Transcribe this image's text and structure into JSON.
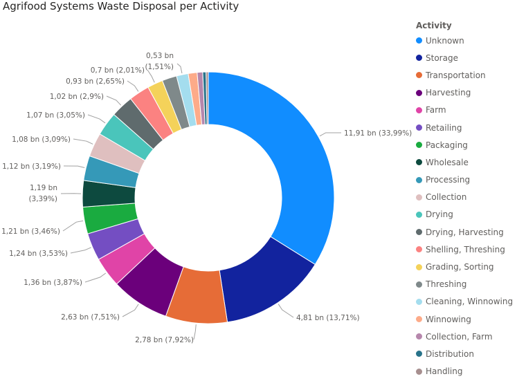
{
  "title": "Agrifood Systems Waste Disposal per Activity",
  "legend": {
    "title": "Activity"
  },
  "chart_data": {
    "type": "pie",
    "donut": true,
    "title": "Agrifood Systems Waste Disposal per Activity",
    "legend_title": "Activity",
    "legend_position": "right",
    "slices": [
      {
        "name": "Unknown",
        "value": 11.91,
        "label": "11,91 bn (33,99%)",
        "color": "#118DFF"
      },
      {
        "name": "Storage",
        "value": 4.81,
        "label": "4,81 bn (13,71%)",
        "color": "#12239E"
      },
      {
        "name": "Transportation",
        "value": 2.78,
        "label": "2,78 bn (7,92%)",
        "color": "#E66C37"
      },
      {
        "name": "Harvesting",
        "value": 2.63,
        "label": "2,63 bn (7,51%)",
        "color": "#6B007B"
      },
      {
        "name": "Farm",
        "value": 1.36,
        "label": "1,36 bn (3,87%)",
        "color": "#E044A7"
      },
      {
        "name": "Retailing",
        "value": 1.24,
        "label": "1,24 bn (3,53%)",
        "color": "#744EC2"
      },
      {
        "name": "Packaging",
        "value": 1.21,
        "label": "1,21 bn (3,46%)",
        "color": "#1AAB40"
      },
      {
        "name": "Wholesale",
        "value": 1.19,
        "label": "1,19 bn (3,39%)",
        "color": "#0D4A3F"
      },
      {
        "name": "Processing",
        "value": 1.12,
        "label": "1,12 bn (3,19%)",
        "color": "#3599B8"
      },
      {
        "name": "Collection",
        "value": 1.08,
        "label": "1,08 bn (3,09%)",
        "color": "#DFBFBF"
      },
      {
        "name": "Drying",
        "value": 1.07,
        "label": "1,07 bn (3,05%)",
        "color": "#4AC5BB"
      },
      {
        "name": "Drying, Harvesting",
        "value": 1.02,
        "label": "1,02 bn (2,9%)",
        "color": "#5F6B6D"
      },
      {
        "name": "Shelling, Threshing",
        "value": 0.93,
        "label": "0,93 bn (2,65%)",
        "color": "#FB8281"
      },
      {
        "name": "Grading, Sorting",
        "value": 0.7,
        "label": "0,7 bn (2,01%)",
        "color": "#F4D25A"
      },
      {
        "name": "Threshing",
        "value": 0.66,
        "label": "",
        "color": "#7F898A"
      },
      {
        "name": "Cleaning, Winnowing",
        "value": 0.53,
        "label": "0,53 bn (1,51%)",
        "color": "#A4DDEE"
      },
      {
        "name": "Winnowing",
        "value": 0.4,
        "label": "",
        "color": "#FDAB89"
      },
      {
        "name": "Collection, Farm",
        "value": 0.25,
        "label": "",
        "color": "#B687AC"
      },
      {
        "name": "Distribution",
        "value": 0.15,
        "label": "",
        "color": "#28738A"
      },
      {
        "name": "Handling",
        "value": 0.1,
        "label": "",
        "color": "#A78F8F"
      }
    ]
  }
}
